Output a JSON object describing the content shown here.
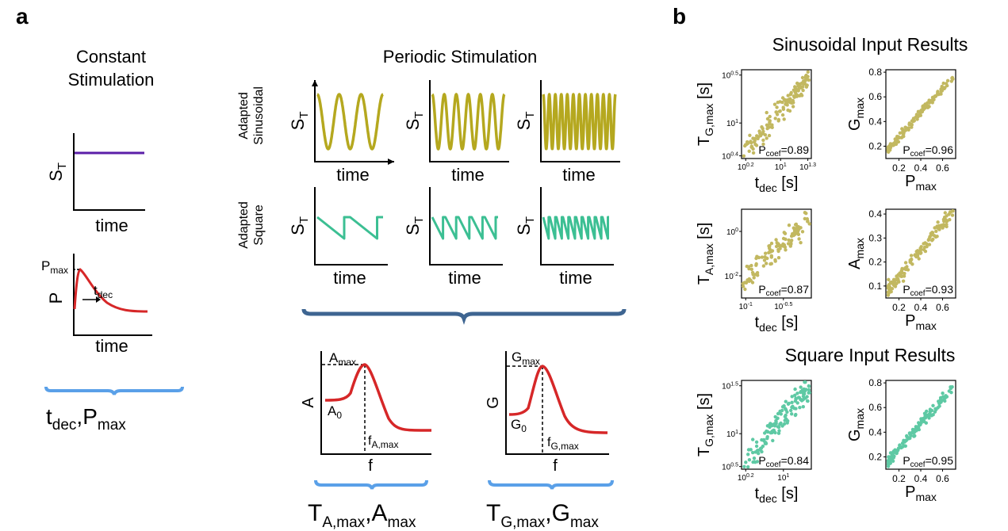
{
  "panel_a": {
    "label": "a",
    "constant": {
      "title_line1": "Constant",
      "title_line2": "Stimulation",
      "y_label": "S",
      "y_sub": "T",
      "x_label": "time",
      "decay_y_label": "P",
      "decay_x_label": "time",
      "pmax_label": "P",
      "pmax_sub": "max",
      "tdec_label": "t",
      "tdec_sub": "dec",
      "result": {
        "a": "t",
        "a_sub": "dec",
        "sep": ",",
        "b": "P",
        "b_sub": "max"
      },
      "colors": {
        "flat": "#5b1fa8",
        "decay": "#d62728"
      }
    },
    "periodic": {
      "title": "Periodic Stimulation",
      "row_sin_line1": "Adapted",
      "row_sin_line2": "Sinusoidal",
      "row_sq_line1": "Adapted",
      "row_sq_line2": "Square",
      "y_label": "S",
      "y_sub": "T",
      "x_label": "time",
      "sin_cycles": [
        3,
        6,
        12
      ],
      "square_cycles": [
        2,
        5,
        10
      ],
      "colors": {
        "sin": "#b5a81f",
        "square": "#3cbf93",
        "brace": "#3e6591"
      }
    },
    "response": {
      "amp": {
        "y_label": "A",
        "x_label": "f",
        "peak": "A",
        "peak_sub": "max",
        "base": "A",
        "base_sub": "0",
        "fpeak": "f",
        "fpeak_sub": "A,max",
        "result": {
          "a": "T",
          "a_sub": "A,max",
          "sep": ",",
          "b": "A",
          "b_sub": "max"
        }
      },
      "gain": {
        "y_label": "G",
        "x_label": "f",
        "peak": "G",
        "peak_sub": "max",
        "base": "G",
        "base_sub": "0",
        "fpeak": "f",
        "fpeak_sub": "G,max",
        "result": {
          "a": "T",
          "a_sub": "G,max",
          "sep": ",",
          "b": "G",
          "b_sub": "max"
        }
      },
      "curve_color": "#d62728",
      "brace_color": "#5aa0e8"
    }
  },
  "panel_b": {
    "label": "b",
    "sin_title": "Sinusoidal Input Results",
    "sq_title": "Square Input Results"
  },
  "chart_data": [
    {
      "type": "scatter",
      "id": "sin_T_G",
      "log": true,
      "xlabel": "t",
      "xlabel_sub": "dec",
      "xlabel_unit": " [s]",
      "ylabel": "T",
      "ylabel_sub": "G,max",
      "ylabel_unit": " [s]",
      "xticks": [
        {
          "base": "10",
          "exp": "0.2"
        },
        {
          "base": "10",
          "exp": "1"
        },
        {
          "base": "10",
          "exp": "1.3"
        }
      ],
      "yticks": [
        {
          "base": "10",
          "exp": "0.4"
        },
        {
          "base": "10",
          "exp": "1"
        },
        {
          "base": "10",
          "exp": "0.5"
        }
      ],
      "annotation": {
        "p": "P",
        "sub": "coef",
        "value": "=0.89"
      },
      "color": "#c2b860",
      "n": 140,
      "trend": [
        0.04,
        0.94
      ],
      "spread": 0.13,
      "seed": 3
    },
    {
      "type": "scatter",
      "id": "sin_G",
      "log": false,
      "xlabel": "P",
      "xlabel_sub": "max",
      "xlabel_unit": "",
      "ylabel": "G",
      "ylabel_sub": "max",
      "ylabel_unit": "",
      "xlim": [
        0.08,
        0.72
      ],
      "ylim": [
        0.1,
        0.82
      ],
      "xticks": [
        0.2,
        0.4,
        0.6
      ],
      "yticks": [
        0.2,
        0.4,
        0.6,
        0.8
      ],
      "annotation": {
        "p": "P",
        "sub": "coef",
        "value": "=0.96"
      },
      "color": "#c2b860",
      "n": 140,
      "slope": 1.0,
      "intercept": 0.07,
      "spread": 0.035,
      "seed": 5
    },
    {
      "type": "scatter",
      "id": "sin_T_A",
      "log": true,
      "xlabel": "t",
      "xlabel_sub": "dec",
      "xlabel_unit": " [s]",
      "ylabel": "T",
      "ylabel_sub": "A,max",
      "ylabel_unit": " [s]",
      "xticks": [
        {
          "base": "10",
          "exp": "-1"
        },
        {
          "base": "10",
          "exp": "-0.5"
        }
      ],
      "yticks": [
        {
          "base": "10",
          "exp": "-2"
        },
        {
          "base": "10",
          "exp": "0"
        }
      ],
      "annotation": {
        "p": "P",
        "sub": "coef",
        "value": "=0.87"
      },
      "color": "#c2b860",
      "n": 110,
      "trend": [
        0.2,
        0.92
      ],
      "spread": 0.13,
      "seed": 7
    },
    {
      "type": "scatter",
      "id": "sin_A",
      "log": false,
      "xlabel": "P",
      "xlabel_sub": "max",
      "xlabel_unit": "",
      "ylabel": "A",
      "ylabel_sub": "max",
      "ylabel_unit": "",
      "xlim": [
        0.08,
        0.72
      ],
      "ylim": [
        0.05,
        0.42
      ],
      "xticks": [
        0.2,
        0.4,
        0.6
      ],
      "yticks": [
        0.1,
        0.2,
        0.3,
        0.4
      ],
      "annotation": {
        "p": "P",
        "sub": "coef",
        "value": "=0.93"
      },
      "color": "#c2b860",
      "n": 140,
      "slope": 0.55,
      "intercept": 0.03,
      "spread": 0.03,
      "seed": 11
    },
    {
      "type": "scatter",
      "id": "sq_T_G",
      "log": true,
      "xlabel": "t",
      "xlabel_sub": "dec",
      "xlabel_unit": " [s]",
      "ylabel": "T",
      "ylabel_sub": "G,max",
      "ylabel_unit": " [s]",
      "xticks": [
        {
          "base": "10",
          "exp": "0.2"
        },
        {
          "base": "10",
          "exp": "1"
        }
      ],
      "yticks": [
        {
          "base": "10",
          "exp": "0.5"
        },
        {
          "base": "10",
          "exp": "1"
        },
        {
          "base": "10",
          "exp": "1.5"
        }
      ],
      "annotation": {
        "p": "P",
        "sub": "coef",
        "value": "=0.84"
      },
      "color": "#5ec9a4",
      "n": 140,
      "trend": [
        0.04,
        0.94
      ],
      "spread": 0.15,
      "seed": 13
    },
    {
      "type": "scatter",
      "id": "sq_G",
      "log": false,
      "xlabel": "P",
      "xlabel_sub": "max",
      "xlabel_unit": "",
      "ylabel": "G",
      "ylabel_sub": "max",
      "ylabel_unit": "",
      "xlim": [
        0.08,
        0.72
      ],
      "ylim": [
        0.1,
        0.82
      ],
      "xticks": [
        0.2,
        0.4,
        0.6
      ],
      "yticks": [
        0.2,
        0.4,
        0.6,
        0.8
      ],
      "annotation": {
        "p": "P",
        "sub": "coef",
        "value": "=0.95"
      },
      "color": "#5ec9a4",
      "n": 140,
      "slope": 1.0,
      "intercept": 0.07,
      "spread": 0.04,
      "seed": 17
    }
  ]
}
